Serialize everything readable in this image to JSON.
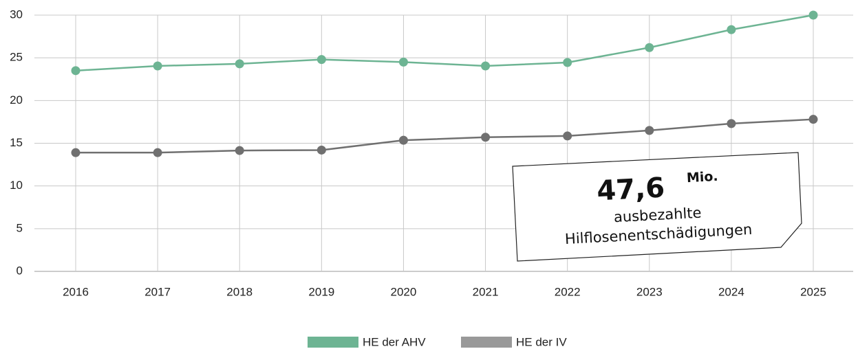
{
  "chart_data": {
    "type": "line",
    "categories": [
      "2016",
      "2017",
      "2018",
      "2019",
      "2020",
      "2021",
      "2022",
      "2023",
      "2024",
      "2025"
    ],
    "series": [
      {
        "name": "HE der AHV",
        "color": "#6db493",
        "values": [
          23.5,
          24.05,
          24.3,
          24.8,
          24.5,
          24.05,
          24.45,
          26.2,
          28.3,
          30.0
        ]
      },
      {
        "name": "HE der IV",
        "color": "#707070",
        "legend_color": "#999999",
        "values": [
          13.9,
          13.9,
          14.15,
          14.2,
          15.35,
          15.7,
          15.85,
          16.5,
          17.3,
          17.8
        ]
      }
    ],
    "ylim": [
      0,
      30
    ],
    "yticks": [
      0,
      5,
      10,
      15,
      20,
      25,
      30
    ],
    "grid": true,
    "legend": "bottom",
    "annotation": {
      "value": "47,6",
      "unit": "Mio.",
      "lines": [
        "ausbezahlte",
        "Hilflosenentschädigungen"
      ]
    }
  }
}
